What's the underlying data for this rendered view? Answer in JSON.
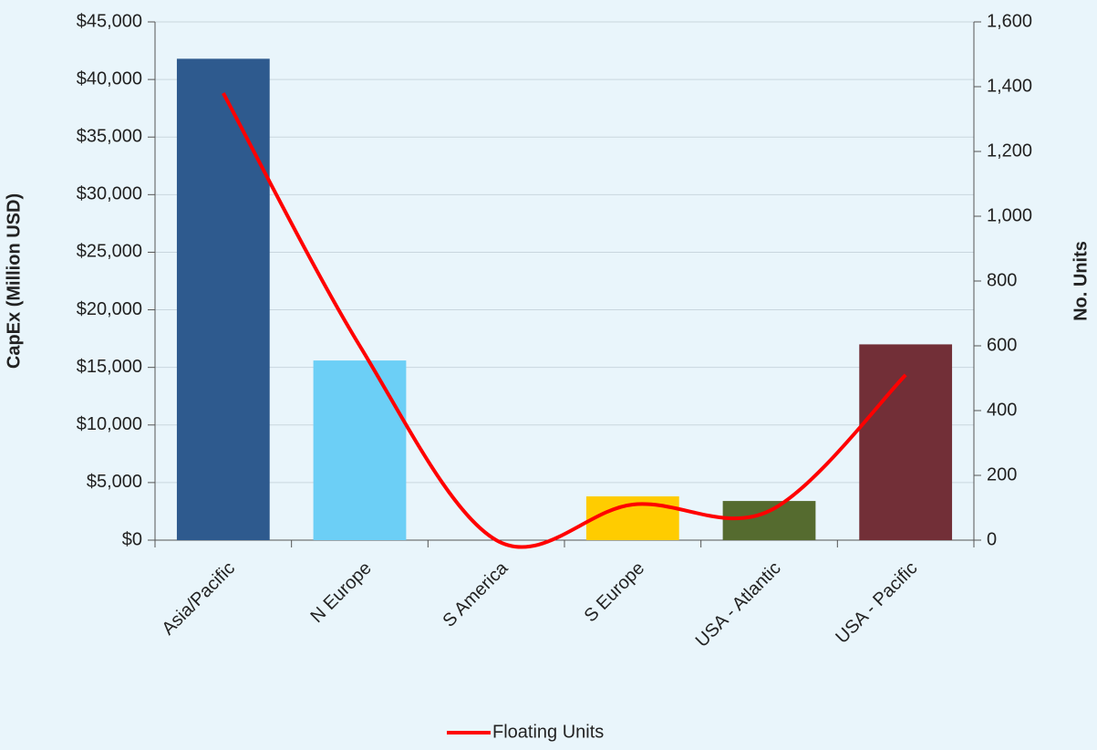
{
  "chart_data": {
    "type": "combo",
    "categories": [
      "Asia/Pacific",
      "N Europe",
      "S America",
      "S Europe",
      "USA - Atlantic",
      "USA - Pacific"
    ],
    "series": [
      {
        "type": "bar",
        "values": [
          41800,
          15600,
          0,
          3800,
          3400,
          17000
        ],
        "colors": [
          "#2e5a8e",
          "#6ccff6",
          "#8a8a8a",
          "#ffcc00",
          "#556b2f",
          "#722f37"
        ]
      },
      {
        "type": "line",
        "name": "Floating Units",
        "color": "#ff0000",
        "axis": "y2",
        "values": [
          1380,
          600,
          0,
          110,
          90,
          510
        ]
      }
    ],
    "ylabel": "CapEx (Million USD)",
    "y2label": "No. Units",
    "ylim": [
      0,
      45000
    ],
    "yticks": [
      {
        "value": 0,
        "label": "$0"
      },
      {
        "value": 5000,
        "label": "$5,000"
      },
      {
        "value": 10000,
        "label": "$10,000"
      },
      {
        "value": 15000,
        "label": "$15,000"
      },
      {
        "value": 20000,
        "label": "$20,000"
      },
      {
        "value": 25000,
        "label": "$25,000"
      },
      {
        "value": 30000,
        "label": "$30,000"
      },
      {
        "value": 35000,
        "label": "$35,000"
      },
      {
        "value": 40000,
        "label": "$40,000"
      },
      {
        "value": 45000,
        "label": "$45,000"
      }
    ],
    "y2lim": [
      0,
      1600
    ],
    "y2ticks": [
      0,
      200,
      400,
      600,
      800,
      {
        "value": 1000,
        "label": "1,000"
      },
      {
        "value": 1200,
        "label": "1,200"
      },
      {
        "value": 1400,
        "label": "1,400"
      },
      {
        "value": 1600,
        "label": "1,600"
      }
    ],
    "grid": true,
    "legend": "bottom"
  }
}
